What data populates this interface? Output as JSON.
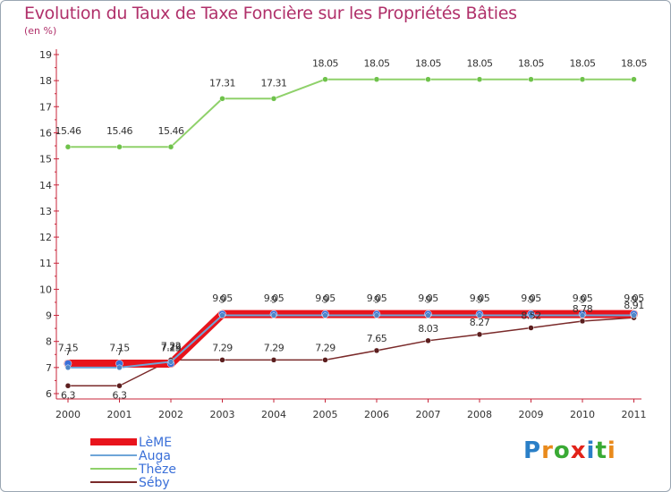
{
  "title": "Evolution du Taux de Taxe Foncière sur les Propriétés Bâties",
  "unit": "(en %)",
  "logo": {
    "text": "Proxiti",
    "letters": [
      "P",
      "r",
      "o",
      "x",
      "i",
      "t",
      "i"
    ],
    "colors": [
      "#2a7fc7",
      "#e98a1c",
      "#3aaa35",
      "#e2231a",
      "#2a7fc7",
      "#3aaa35",
      "#e98a1c"
    ]
  },
  "chart_data": {
    "type": "line",
    "title": "Evolution du Taux de Taxe Foncière sur les Propriétés Bâties",
    "ylabel": "(en %)",
    "xlabel": "",
    "x": [
      "2000",
      "2001",
      "2002",
      "2003",
      "2004",
      "2005",
      "2006",
      "2007",
      "2008",
      "2009",
      "2010",
      "2011"
    ],
    "ylim": [
      6,
      19
    ],
    "yticks": [
      "6",
      "7",
      "8",
      "9",
      "10",
      "11",
      "12",
      "13",
      "14",
      "15",
      "16",
      "17",
      "18",
      "19"
    ],
    "grid": false,
    "legend": "bottom-left",
    "series": [
      {
        "name": "LèME",
        "color": "#e8141c",
        "marker": "#3a6fd8",
        "values": [
          7.15,
          7.15,
          7.15,
          9.05,
          9.05,
          9.05,
          9.05,
          9.05,
          9.05,
          9.05,
          9.05,
          9.05
        ],
        "labels": [
          "7.15",
          "7.15",
          "7.15",
          "9.05",
          "9.05",
          "9.05",
          "9.05",
          "9.05",
          "9.05",
          "9.05",
          "9.05",
          "9.05"
        ]
      },
      {
        "name": "Auga",
        "color": "#6ea5d8",
        "marker": "#4f86c6",
        "values": [
          7,
          7,
          7.22,
          9,
          9,
          9,
          9,
          9,
          9,
          9,
          9,
          9
        ],
        "labels": [
          "7",
          "7",
          "7.22",
          "9",
          "9",
          "9",
          "9",
          "9",
          "9",
          "9",
          "9",
          "9"
        ]
      },
      {
        "name": "Thèze",
        "color": "#8fd16a",
        "marker": "#6ec24a",
        "values": [
          15.46,
          15.46,
          15.46,
          17.31,
          17.31,
          18.05,
          18.05,
          18.05,
          18.05,
          18.05,
          18.05,
          18.05
        ],
        "labels": [
          "15.46",
          "15.46",
          "15.46",
          "17.31",
          "17.31",
          "18.05",
          "18.05",
          "18.05",
          "18.05",
          "18.05",
          "18.05",
          "18.05"
        ]
      },
      {
        "name": "Séby",
        "color": "#7a2a2a",
        "marker": "#5c1e1e",
        "values": [
          6.3,
          6.3,
          7.29,
          7.29,
          7.29,
          7.29,
          7.65,
          8.03,
          8.27,
          8.52,
          8.78,
          8.91
        ],
        "labels": [
          "6.3",
          "6.3",
          "7.29",
          "7.29",
          "7.29",
          "7.29",
          "7.65",
          "8.03",
          "8.27",
          "8.52",
          "8.78",
          "8.91"
        ]
      }
    ]
  }
}
